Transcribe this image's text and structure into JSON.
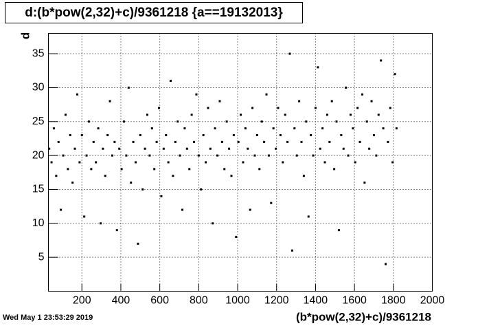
{
  "chart_data": {
    "type": "scatter",
    "title": "d:(b*pow(2,32)+c)/9361218 {a==19132013}",
    "x_label": "(b*pow(2,32)+c)/9361218",
    "y_label": "d",
    "footer": "Wed May  1 23:53:29 2019",
    "color": "#000000",
    "grid": true,
    "xlim": [
      28,
      2000
    ],
    "ylim": [
      0,
      38
    ],
    "xticks": [
      200,
      400,
      600,
      800,
      1000,
      1200,
      1400,
      1600,
      1800,
      2000
    ],
    "yticks": [
      5,
      10,
      15,
      20,
      25,
      30,
      35
    ],
    "x": [
      32,
      44,
      56,
      68,
      80,
      92,
      104,
      116,
      128,
      140,
      152,
      164,
      176,
      188,
      200,
      212,
      224,
      236,
      248,
      260,
      272,
      284,
      296,
      308,
      320,
      332,
      344,
      356,
      368,
      380,
      392,
      404,
      416,
      428,
      440,
      452,
      464,
      476,
      488,
      500,
      512,
      524,
      536,
      548,
      560,
      572,
      584,
      596,
      608,
      620,
      632,
      644,
      656,
      668,
      680,
      692,
      704,
      716,
      728,
      740,
      752,
      764,
      776,
      788,
      800,
      812,
      824,
      836,
      848,
      860,
      872,
      884,
      896,
      908,
      920,
      932,
      944,
      956,
      968,
      980,
      992,
      1004,
      1016,
      1028,
      1040,
      1052,
      1064,
      1076,
      1088,
      1100,
      1112,
      1124,
      1136,
      1148,
      1160,
      1172,
      1184,
      1196,
      1208,
      1220,
      1232,
      1244,
      1256,
      1268,
      1280,
      1292,
      1304,
      1316,
      1328,
      1340,
      1352,
      1364,
      1376,
      1388,
      1400,
      1412,
      1424,
      1436,
      1448,
      1460,
      1472,
      1484,
      1496,
      1508,
      1520,
      1532,
      1544,
      1556,
      1568,
      1580,
      1592,
      1604,
      1616,
      1628,
      1640,
      1652,
      1664,
      1676,
      1688,
      1700,
      1712,
      1724,
      1736,
      1748,
      1760,
      1772,
      1784,
      1796,
      1808,
      1816
    ],
    "values": [
      21,
      19,
      24,
      17,
      22,
      12,
      20,
      26,
      18,
      23,
      16,
      21,
      29,
      19,
      23,
      11,
      20,
      25,
      18,
      22,
      19,
      24,
      10,
      21,
      17,
      23,
      28,
      20,
      22,
      9,
      21,
      18,
      25,
      20,
      30,
      16,
      22,
      19,
      7,
      23,
      15,
      21,
      26,
      20,
      24,
      18,
      22,
      27,
      14,
      21,
      23,
      19,
      31,
      17,
      22,
      25,
      20,
      12,
      24,
      21,
      18,
      26,
      22,
      29,
      20,
      15,
      23,
      19,
      27,
      21,
      10,
      24,
      20,
      28,
      22,
      18,
      25,
      21,
      17,
      23,
      8,
      22,
      26,
      19,
      24,
      21,
      12,
      27,
      20,
      23,
      18,
      25,
      22,
      29,
      20,
      13,
      24,
      21,
      27,
      23,
      19,
      26,
      22,
      35,
      6,
      24,
      20,
      28,
      22,
      17,
      25,
      11,
      23,
      20,
      27,
      33,
      21,
      24,
      19,
      26,
      22,
      28,
      18,
      25,
      9,
      23,
      21,
      30,
      20,
      26,
      24,
      19,
      27,
      22,
      29,
      16,
      25,
      21,
      28,
      23,
      20,
      26,
      34,
      24,
      4,
      22,
      27,
      19,
      32,
      24
    ]
  }
}
